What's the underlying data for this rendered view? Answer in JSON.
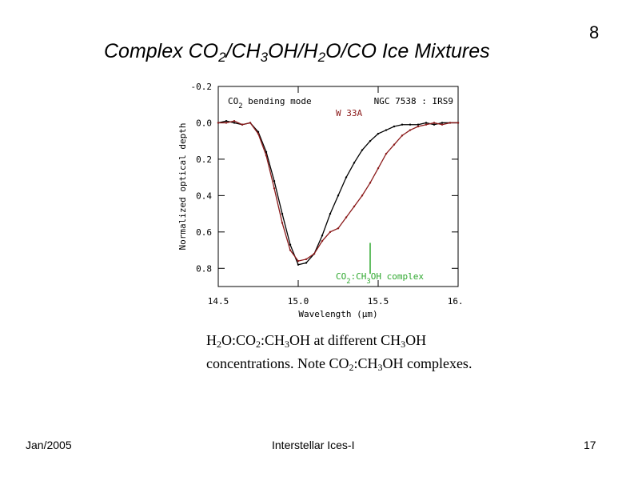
{
  "slide": {
    "title_parts": [
      "Complex CO",
      "2",
      "/CH",
      "3",
      "OH/H",
      "2",
      "O/CO Ice Mixtures"
    ],
    "number": "8",
    "caption_parts": [
      "H",
      "2",
      "O:CO",
      "2",
      ":CH",
      "3",
      "OH at different CH",
      "3",
      "OH concentrations. Note CO",
      "2",
      ":CH",
      "3",
      "OH complexes."
    ],
    "footer": {
      "left": "Jan/2005",
      "center": "Interstellar Ices-I",
      "right": "17"
    }
  },
  "chart_data": {
    "type": "line",
    "xlabel": "Wavelength (μm)",
    "ylabel": "Normalized optical depth",
    "xlim": [
      14.5,
      16.0
    ],
    "ylim": [
      -0.2,
      0.9
    ],
    "y_inverted": true,
    "xticks": [
      "14.5",
      "15.0",
      "15.5",
      "16.0"
    ],
    "yticks": [
      "-0.2",
      "0.0",
      "0.2",
      "0.4",
      "0.6",
      "0.8"
    ],
    "annotations": {
      "band": [
        "CO",
        "2",
        " bending mode"
      ],
      "complex": [
        "CO",
        "2",
        ":CH",
        "3",
        "OH complex"
      ],
      "complex_x": 15.45
    },
    "legend": [
      "NGC 7538 : IRS9",
      "W 33A"
    ],
    "series": [
      {
        "name": "NGC 7538 : IRS9",
        "color": "#000000",
        "x": [
          14.5,
          14.55,
          14.6,
          14.65,
          14.7,
          14.75,
          14.8,
          14.85,
          14.9,
          14.95,
          15.0,
          15.05,
          15.1,
          15.15,
          15.2,
          15.25,
          15.3,
          15.35,
          15.4,
          15.45,
          15.5,
          15.55,
          15.6,
          15.65,
          15.7,
          15.75,
          15.8,
          15.85,
          15.9,
          15.95,
          16.0
        ],
        "y": [
          0.0,
          -0.01,
          0.0,
          0.01,
          0.0,
          0.05,
          0.16,
          0.32,
          0.5,
          0.67,
          0.78,
          0.77,
          0.72,
          0.62,
          0.5,
          0.4,
          0.3,
          0.22,
          0.15,
          0.1,
          0.06,
          0.04,
          0.02,
          0.01,
          0.01,
          0.01,
          0.0,
          0.01,
          0.0,
          0.0,
          0.0
        ]
      },
      {
        "name": "W 33A",
        "color": "#8b1a1a",
        "x": [
          14.5,
          14.55,
          14.6,
          14.65,
          14.7,
          14.75,
          14.8,
          14.85,
          14.9,
          14.95,
          15.0,
          15.05,
          15.1,
          15.15,
          15.2,
          15.25,
          15.3,
          15.35,
          15.4,
          15.45,
          15.5,
          15.55,
          15.6,
          15.65,
          15.7,
          15.75,
          15.8,
          15.85,
          15.9,
          15.95,
          16.0
        ],
        "y": [
          0.0,
          0.0,
          -0.01,
          0.01,
          0.0,
          0.06,
          0.18,
          0.36,
          0.55,
          0.7,
          0.76,
          0.75,
          0.72,
          0.65,
          0.6,
          0.58,
          0.52,
          0.46,
          0.4,
          0.33,
          0.25,
          0.17,
          0.12,
          0.07,
          0.04,
          0.02,
          0.01,
          0.0,
          0.01,
          0.0,
          0.0
        ]
      }
    ]
  }
}
